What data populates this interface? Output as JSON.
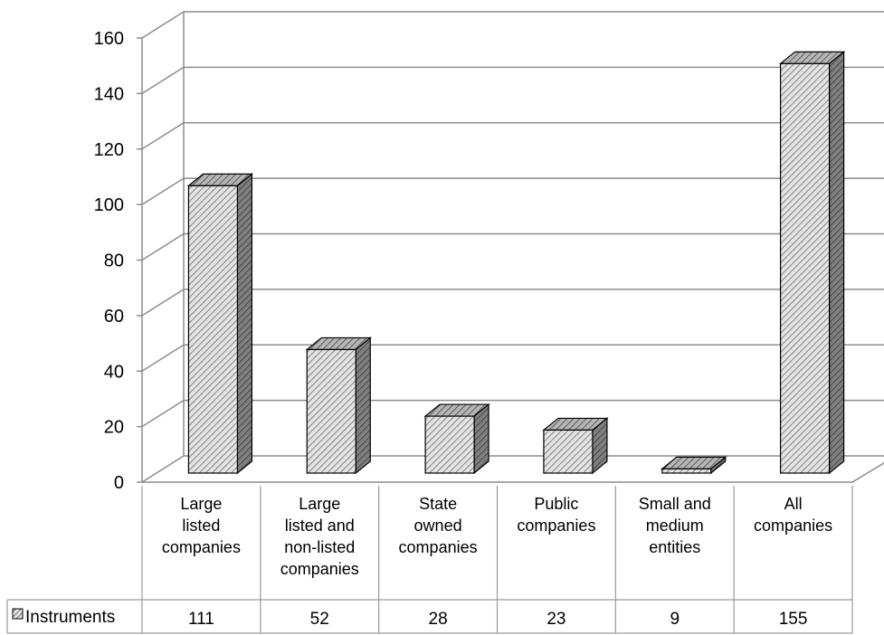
{
  "chart_data": {
    "type": "bar",
    "categories": [
      "Large listed companies",
      "Large listed and non-listed companies",
      "State owned companies",
      "Public companies",
      "Small and medium entities",
      "All companies"
    ],
    "category_lines": [
      [
        "Large",
        "listed",
        "companies"
      ],
      [
        "Large",
        "listed and",
        "non-listed",
        "companies"
      ],
      [
        "State",
        "owned",
        "companies"
      ],
      [
        "Public",
        "companies"
      ],
      [
        "Small and",
        "medium",
        "entities"
      ],
      [
        "All",
        "companies"
      ]
    ],
    "series": [
      {
        "name": "Instruments",
        "values": [
          111,
          52,
          28,
          23,
          9,
          155
        ]
      }
    ],
    "y_ticks": [
      "0",
      "20",
      "40",
      "60",
      "80",
      "100",
      "120",
      "140",
      "160"
    ],
    "ylim": [
      0,
      160
    ],
    "grid": true,
    "legend": "data-table",
    "colors": {
      "bar_front": "#d9d9d9",
      "bar_side": "#7f7f7f",
      "grid": "#8c8c8c"
    }
  }
}
